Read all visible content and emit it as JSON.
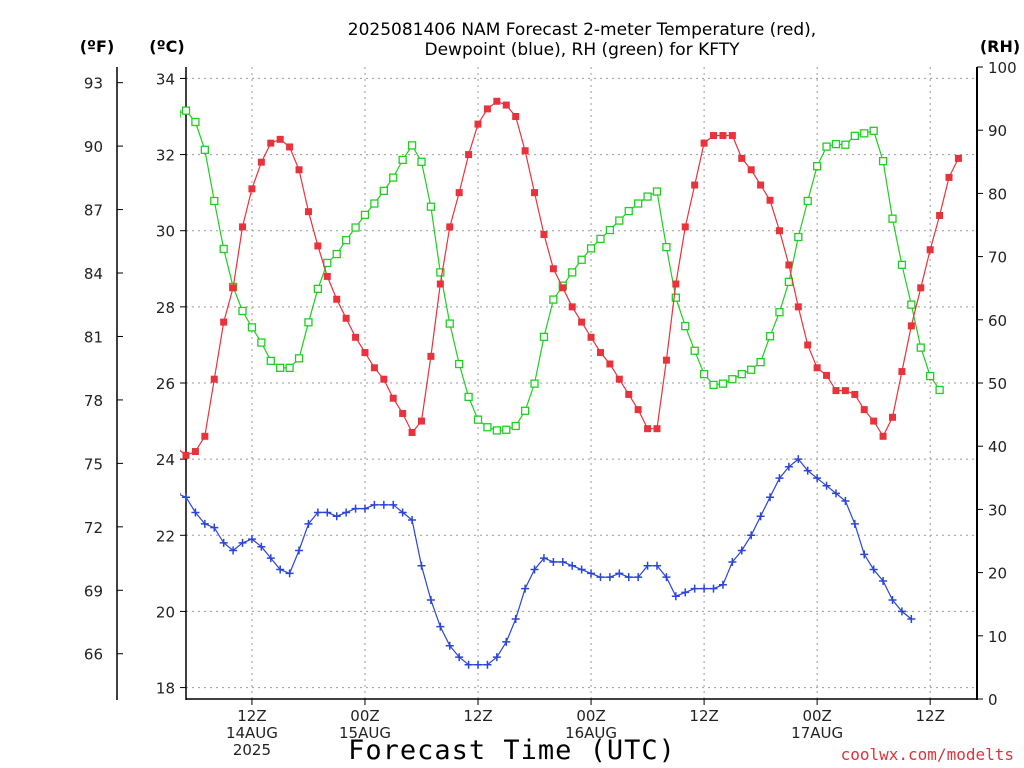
{
  "title_line1": "2025081406 NAM Forecast 2-meter Temperature (red),",
  "title_line2": "Dewpoint (blue), RH (green) for KFTY",
  "unit_f": "(ºF)",
  "unit_c": "(ºC)",
  "unit_rh": "(RH)",
  "xlabel": "Forecast Time (UTC)",
  "credit": "coolwx.com/modelts",
  "colors": {
    "temperature": "#e8333c",
    "dewpoint": "#2a45d8",
    "rh": "#1fcf1f",
    "grid": "#9a9a9a"
  },
  "chart_data": {
    "type": "line",
    "x_unit": "forecast hour (1-hourly from 2025-08-14 07Z)",
    "x_tick_labels": [
      {
        "hour": 12,
        "lines": [
          "12Z",
          "14AUG",
          "2025"
        ]
      },
      {
        "hour": 24,
        "lines": [
          "00Z",
          "15AUG"
        ]
      },
      {
        "hour": 36,
        "lines": [
          "12Z",
          ""
        ]
      },
      {
        "hour": 48,
        "lines": [
          "00Z",
          "16AUG"
        ]
      },
      {
        "hour": 60,
        "lines": [
          "12Z",
          ""
        ]
      },
      {
        "hour": 72,
        "lines": [
          "00Z",
          "17AUG"
        ]
      },
      {
        "hour": 84,
        "lines": [
          "12Z",
          ""
        ]
      }
    ],
    "y_left_celsius": {
      "min": 17.7,
      "max": 34.3,
      "ticks": [
        "18",
        "20",
        "22",
        "24",
        "26",
        "28",
        "30",
        "32",
        "34"
      ]
    },
    "y_left_fahrenheit": {
      "ticks": [
        "66",
        "69",
        "72",
        "75",
        "78",
        "81",
        "84",
        "87",
        "90",
        "93"
      ]
    },
    "y_right_rh": {
      "min": 0,
      "max": 100,
      "ticks": [
        "0",
        "10",
        "20",
        "30",
        "40",
        "50",
        "60",
        "70",
        "80",
        "90",
        "100"
      ]
    },
    "series": [
      {
        "axis": "celsius",
        "marker": "filled-square",
        "values": [
          24.9,
          24.6,
          24.5,
          24.4,
          24.3,
          24.1,
          24.2,
          24.6,
          26.1,
          27.6,
          28.5,
          30.1,
          31.1,
          31.8,
          32.3,
          32.4,
          32.2,
          31.6,
          30.5,
          29.6,
          28.8,
          28.2,
          27.7,
          27.2,
          26.8,
          26.4,
          26.1,
          25.6,
          25.2,
          24.7,
          25.0,
          26.7,
          28.6,
          30.1,
          31.0,
          32.0,
          32.8,
          33.2,
          33.4,
          33.3,
          33.0,
          32.1,
          31.0,
          29.9,
          29.0,
          28.5,
          28.0,
          27.6,
          27.2,
          26.8,
          26.5,
          26.1,
          25.7,
          25.3,
          24.8,
          24.8,
          26.6,
          28.6,
          30.1,
          31.2,
          32.3,
          32.5,
          32.5,
          32.5,
          31.9,
          31.6,
          31.2,
          30.8,
          30.0,
          29.1,
          28.0,
          27.0,
          26.4,
          26.2,
          25.8,
          25.8,
          25.7,
          25.3,
          25.0,
          24.6,
          25.1,
          26.3,
          27.5,
          28.5,
          29.5,
          30.4,
          31.4,
          31.9
        ]
      },
      {
        "axis": "celsius",
        "marker": "plus",
        "values": [
          23.1,
          22.9,
          23.0,
          23.1,
          23.1,
          23.0,
          22.6,
          22.3,
          22.2,
          21.8,
          21.6,
          21.8,
          21.9,
          21.7,
          21.4,
          21.1,
          21.0,
          21.6,
          22.3,
          22.6,
          22.6,
          22.5,
          22.6,
          22.7,
          22.7,
          22.8,
          22.8,
          22.8,
          22.6,
          22.4,
          21.2,
          20.3,
          19.6,
          19.1,
          18.8,
          18.6,
          18.6,
          18.6,
          18.8,
          19.2,
          19.8,
          20.6,
          21.1,
          21.4,
          21.3,
          21.3,
          21.2,
          21.1,
          21.0,
          20.9,
          20.9,
          21.0,
          20.9,
          20.9,
          21.2,
          21.2,
          20.9,
          20.4,
          20.5,
          20.6,
          20.6,
          20.6,
          20.7,
          21.3,
          21.6,
          22.0,
          22.5,
          23.0,
          23.5,
          23.8,
          24.0,
          23.7,
          23.5,
          23.3,
          23.1,
          22.9,
          22.3,
          21.5,
          21.1,
          20.8,
          20.3,
          20.0,
          19.8
        ]
      },
      {
        "axis": "rh",
        "marker": "open-square",
        "values": [
          89.8,
          90.3,
          91.5,
          92.2,
          92.6,
          93.1,
          91.3,
          86.9,
          78.8,
          71.2,
          65.2,
          61.4,
          58.8,
          56.4,
          53.5,
          52.4,
          52.4,
          53.9,
          59.6,
          64.9,
          69.0,
          70.4,
          72.6,
          74.6,
          76.6,
          78.4,
          80.4,
          82.5,
          85.3,
          87.6,
          85.0,
          77.9,
          67.5,
          59.4,
          53.0,
          47.8,
          44.2,
          43.0,
          42.5,
          42.6,
          43.2,
          45.6,
          49.9,
          57.3,
          63.2,
          65.4,
          67.5,
          69.5,
          71.3,
          72.8,
          74.2,
          75.7,
          77.2,
          78.4,
          79.5,
          80.3,
          71.5,
          63.5,
          59.0,
          55.1,
          51.4,
          49.7,
          49.9,
          50.6,
          51.4,
          52.1,
          53.3,
          57.4,
          61.2,
          66.0,
          73.1,
          78.8,
          84.3,
          87.4,
          87.8,
          87.7,
          89.1,
          89.5,
          89.9,
          85.1,
          76.0,
          68.7,
          62.4,
          55.6,
          51.1,
          48.9
        ]
      }
    ]
  }
}
